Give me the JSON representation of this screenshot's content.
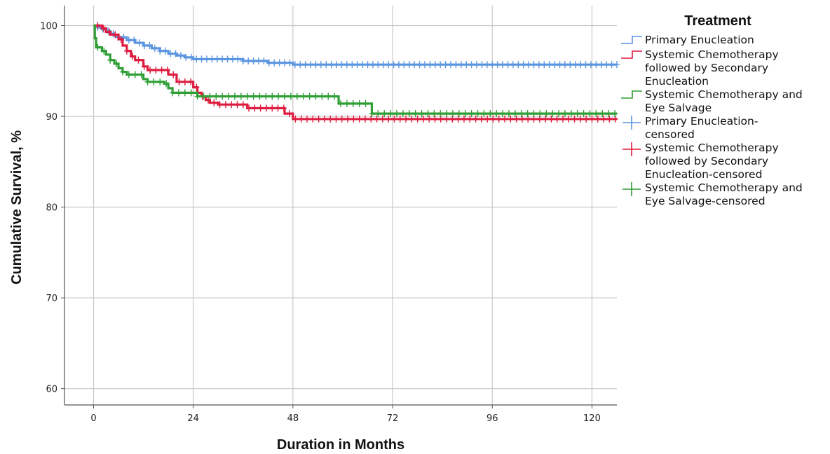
{
  "chart_data": {
    "type": "line",
    "ylabel": "Cumulative Survival, %",
    "xlabel": "Duration in Months",
    "xlim": [
      -7,
      126
    ],
    "ylim": [
      58.2,
      102.2
    ],
    "xticks": [
      0,
      24,
      48,
      72,
      96,
      120
    ],
    "yticks": [
      60,
      70,
      80,
      90,
      100
    ],
    "grid": true,
    "legend": {
      "title": "Treatment",
      "placement": "right",
      "entries": [
        {
          "label": [
            "Primary Enucleation"
          ],
          "color": "#5b95e0",
          "kind": "step"
        },
        {
          "label": [
            "Systemic Chemotherapy",
            "followed by Secondary",
            "Enucleation"
          ],
          "color": "#dd1c3f",
          "kind": "step"
        },
        {
          "label": [
            "Systemic Chemotherapy and",
            "Eye Salvage"
          ],
          "color": "#2f9e34",
          "kind": "step"
        },
        {
          "label": [
            "Primary Enucleation-",
            "censored"
          ],
          "color": "#5b95e0",
          "kind": "censor"
        },
        {
          "label": [
            "Systemic Chemotherapy",
            "followed by Secondary",
            "Enucleation-censored"
          ],
          "color": "#dd1c3f",
          "kind": "censor"
        },
        {
          "label": [
            "Systemic Chemotherapy and",
            "Eye Salvage-censored"
          ],
          "color": "#2f9e34",
          "kind": "censor"
        }
      ]
    },
    "series": [
      {
        "name": "Primary Enucleation",
        "color": "#5b95e0",
        "steps": [
          [
            0,
            100
          ],
          [
            1,
            99.8
          ],
          [
            2,
            99.6
          ],
          [
            3,
            99.4
          ],
          [
            4,
            99.1
          ],
          [
            5,
            98.9
          ],
          [
            6,
            98.7
          ],
          [
            8,
            98.4
          ],
          [
            10,
            98.1
          ],
          [
            12,
            97.8
          ],
          [
            14,
            97.5
          ],
          [
            16,
            97.2
          ],
          [
            18,
            96.9
          ],
          [
            20,
            96.7
          ],
          [
            22,
            96.5
          ],
          [
            24,
            96.3
          ],
          [
            30,
            96.3
          ],
          [
            36,
            96.1
          ],
          [
            42,
            95.9
          ],
          [
            48,
            95.7
          ],
          [
            126,
            95.7
          ]
        ],
        "censored": {
          "from": 1,
          "to": 126,
          "step": 1.25
        }
      },
      {
        "name": "Systemic Chemotherapy followed by Secondary Enucleation",
        "color": "#dd1c3f",
        "steps": [
          [
            0,
            100
          ],
          [
            2,
            99.7
          ],
          [
            3,
            99.3
          ],
          [
            4,
            99.0
          ],
          [
            6,
            98.5
          ],
          [
            7,
            97.8
          ],
          [
            8,
            97.2
          ],
          [
            9,
            96.6
          ],
          [
            10,
            96.2
          ],
          [
            12,
            95.5
          ],
          [
            13,
            95.1
          ],
          [
            18,
            94.6
          ],
          [
            20,
            93.8
          ],
          [
            24,
            93.2
          ],
          [
            25,
            92.6
          ],
          [
            26,
            92.2
          ],
          [
            27,
            91.8
          ],
          [
            28,
            91.5
          ],
          [
            30,
            91.3
          ],
          [
            36,
            91.3
          ],
          [
            37,
            90.9
          ],
          [
            45,
            90.9
          ],
          [
            46,
            90.3
          ],
          [
            48,
            89.7
          ],
          [
            126,
            89.7
          ]
        ],
        "censored": {
          "from": 1,
          "to": 126,
          "step": 1.4
        }
      },
      {
        "name": "Systemic Chemotherapy and Eye Salvage",
        "color": "#2f9e34",
        "steps": [
          [
            0,
            100
          ],
          [
            0.3,
            98.6
          ],
          [
            0.6,
            97.6
          ],
          [
            2,
            97.2
          ],
          [
            3,
            96.8
          ],
          [
            4,
            96.2
          ],
          [
            5,
            95.8
          ],
          [
            6,
            95.3
          ],
          [
            7,
            94.9
          ],
          [
            8,
            94.6
          ],
          [
            12,
            94.1
          ],
          [
            13,
            93.8
          ],
          [
            17,
            93.6
          ],
          [
            18,
            93.1
          ],
          [
            19,
            92.6
          ],
          [
            24,
            92.6
          ],
          [
            25,
            92.2
          ],
          [
            58,
            92.2
          ],
          [
            59,
            91.4
          ],
          [
            66,
            91.4
          ],
          [
            67,
            90.3
          ],
          [
            126,
            90.3
          ]
        ],
        "censored": {
          "from": 1,
          "to": 126,
          "step": 1.5
        }
      }
    ]
  }
}
